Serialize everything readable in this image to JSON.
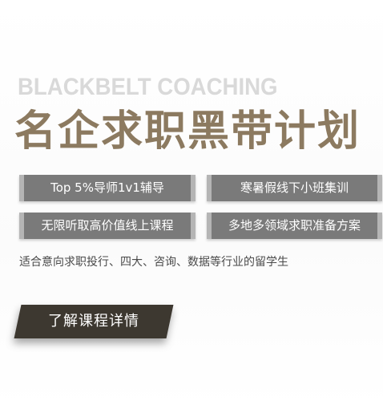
{
  "banner": {
    "eyebrow": "BLACKBELT COACHING",
    "headline": "名企求职黑带计划",
    "tags": [
      "Top 5%导师1v1辅导",
      "寒暑假线下小班集训",
      "无限听取高价值线上课程",
      "多地多领域求职准备方案"
    ],
    "audience": "适合意向求职投行、四大、咨询、数据等行业的留学生",
    "cta_label": "了解课程详情"
  },
  "colors": {
    "headline": "#8c7a60",
    "eyebrow": "#d9d9d9",
    "tag_bg": "#7a7a7a",
    "cta_bg": "#3d3830"
  }
}
